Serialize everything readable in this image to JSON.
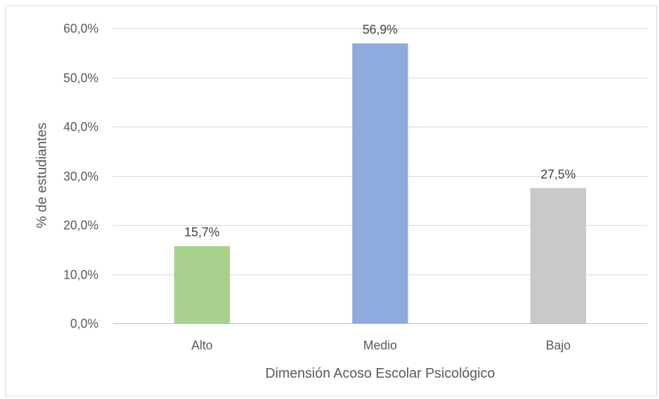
{
  "chart_data": {
    "type": "bar",
    "title": "",
    "xlabel": "Dimensión Acoso Escolar Psicológico",
    "ylabel": "% de estudiantes",
    "categories": [
      "Alto",
      "Medio",
      "Bajo"
    ],
    "values": [
      15.7,
      56.9,
      27.5
    ],
    "value_labels": [
      "15,7%",
      "56,9%",
      "27,5%"
    ],
    "colors": [
      "#a9d18e",
      "#8faadc",
      "#c9c9c9"
    ],
    "ylim": [
      0,
      60
    ],
    "yticks": [
      0,
      10,
      20,
      30,
      40,
      50,
      60
    ],
    "ytick_labels": [
      "0,0%",
      "10,0%",
      "20,0%",
      "30,0%",
      "40,0%",
      "50,0%",
      "60,0%"
    ],
    "grid": true,
    "legend": "none"
  }
}
